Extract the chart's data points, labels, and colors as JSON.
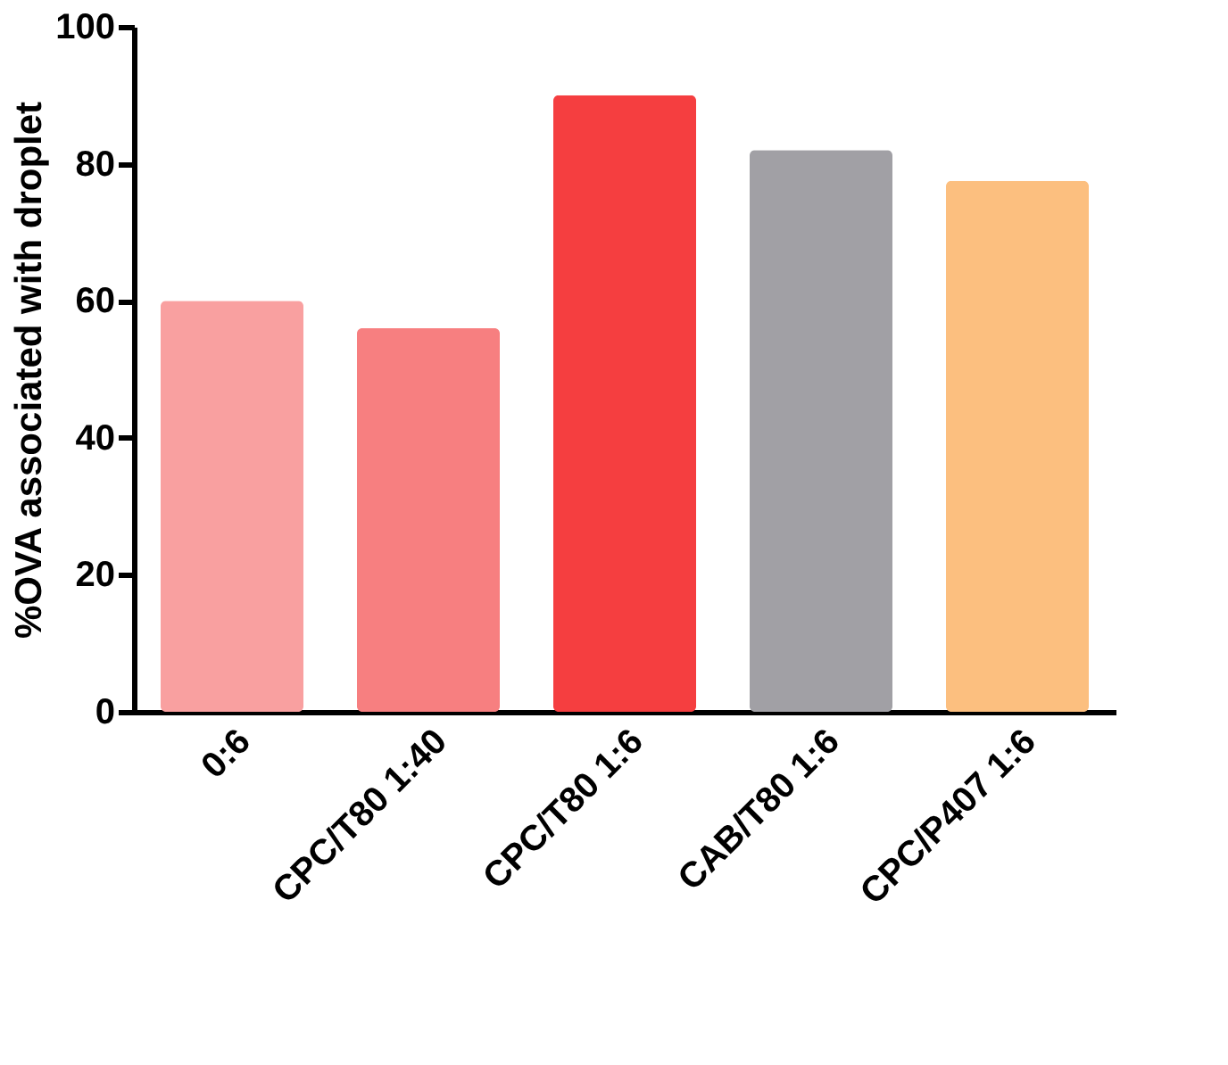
{
  "chart_data": {
    "type": "bar",
    "ylabel": "%OVA associated with droplet",
    "categories": [
      "0:6",
      "CPC/T80 1:40",
      "CPC/T80 1:6",
      "CAB/T80 1:6",
      "CPC/P407 1:6"
    ],
    "values": [
      60,
      56,
      90,
      82,
      77.5
    ],
    "colors": [
      "#f9a0a0",
      "#f77f80",
      "#f53e40",
      "#a1a0a5",
      "#fcbf7f"
    ],
    "ylim": [
      0,
      100
    ],
    "yticks": [
      0,
      20,
      40,
      60,
      80,
      100
    ],
    "grid": false
  }
}
